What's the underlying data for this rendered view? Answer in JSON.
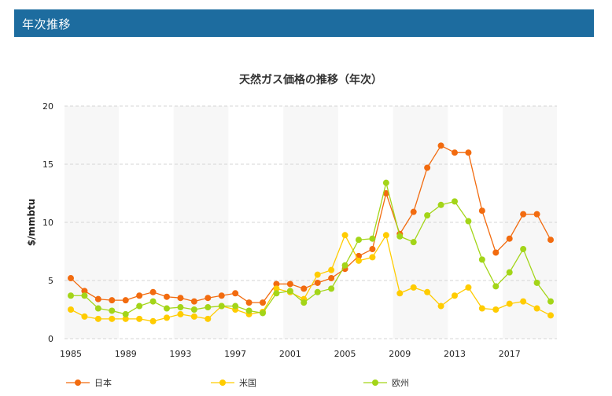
{
  "header": {
    "title": "年次推移"
  },
  "colors": {
    "header_bg": "#1d6c9f",
    "band": "#f7f7f7",
    "grid": "#d6d6d6"
  },
  "chart_data": {
    "type": "line",
    "title": "天然ガス価格の推移（年次）",
    "xlabel": "",
    "ylabel": "$/mmbtu",
    "ylim": [
      0,
      20
    ],
    "yticks": [
      0,
      5,
      10,
      15,
      20
    ],
    "xticks": [
      1985,
      1989,
      1993,
      1997,
      2001,
      2005,
      2009,
      2013,
      2017
    ],
    "grid": "horizontal dashed",
    "legend_position": "bottom",
    "x": [
      1985,
      1986,
      1987,
      1988,
      1989,
      1990,
      1991,
      1992,
      1993,
      1994,
      1995,
      1996,
      1997,
      1998,
      1999,
      2000,
      2001,
      2002,
      2003,
      2004,
      2005,
      2006,
      2007,
      2008,
      2009,
      2010,
      2011,
      2012,
      2013,
      2014,
      2015,
      2016,
      2017,
      2018,
      2019,
      2020
    ],
    "series": [
      {
        "name": "日本",
        "color": "#f26b0f",
        "values": [
          5.2,
          4.1,
          3.4,
          3.3,
          3.3,
          3.7,
          4.0,
          3.6,
          3.5,
          3.2,
          3.5,
          3.7,
          3.9,
          3.1,
          3.1,
          4.7,
          4.7,
          4.3,
          4.8,
          5.2,
          6.0,
          7.1,
          7.7,
          12.5,
          9.0,
          10.9,
          14.7,
          16.6,
          16.0,
          16.0,
          11.0,
          7.4,
          8.6,
          10.7,
          10.7,
          8.5
        ]
      },
      {
        "name": "米国",
        "color": "#ffcc00",
        "values": [
          2.5,
          1.9,
          1.7,
          1.7,
          1.7,
          1.7,
          1.5,
          1.8,
          2.1,
          1.9,
          1.7,
          2.8,
          2.5,
          2.1,
          2.3,
          4.3,
          4.0,
          3.4,
          5.5,
          5.9,
          8.9,
          6.7,
          7.0,
          8.9,
          3.9,
          4.4,
          4.0,
          2.8,
          3.7,
          4.4,
          2.6,
          2.5,
          3.0,
          3.2,
          2.6,
          2.0
        ]
      },
      {
        "name": "欧州",
        "color": "#a3d518",
        "values": [
          3.7,
          3.7,
          2.6,
          2.4,
          2.1,
          2.8,
          3.2,
          2.6,
          2.7,
          2.5,
          2.7,
          2.8,
          2.8,
          2.4,
          2.2,
          3.9,
          4.1,
          3.1,
          4.0,
          4.3,
          6.3,
          8.5,
          8.6,
          13.4,
          8.8,
          8.3,
          10.6,
          11.5,
          11.8,
          10.1,
          6.8,
          4.5,
          5.7,
          7.7,
          4.8,
          3.2
        ]
      }
    ]
  }
}
